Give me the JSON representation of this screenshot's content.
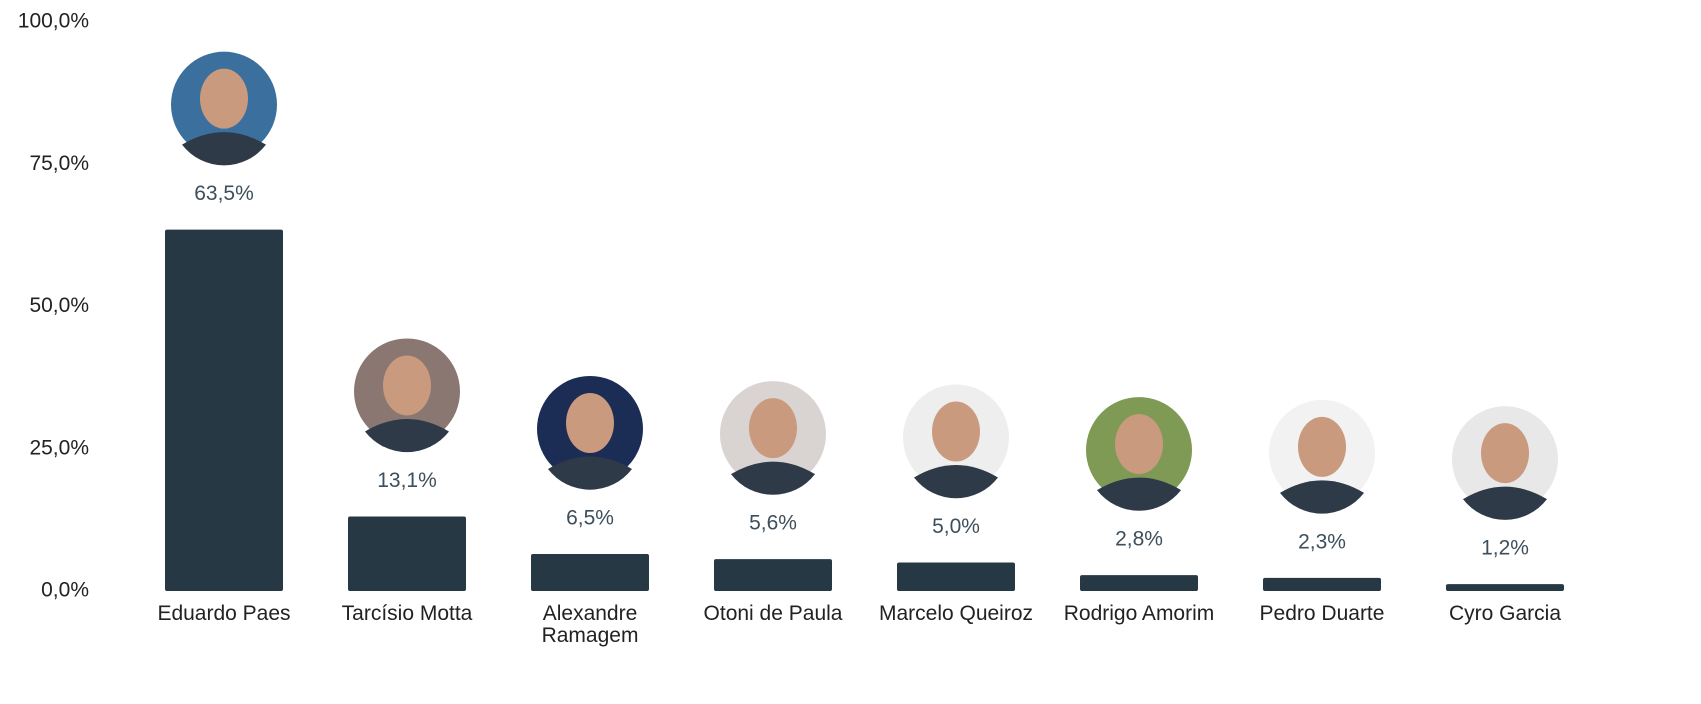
{
  "chart_data": {
    "type": "bar",
    "categories": [
      "Eduardo Paes",
      "Tarcísio Motta",
      "Alexandre Ramagem",
      "Otoni de Paula",
      "Marcelo Queiroz",
      "Rodrigo Amorim",
      "Pedro Duarte",
      "Cyro Garcia"
    ],
    "values": [
      63.5,
      13.1,
      6.5,
      5.6,
      5.0,
      2.8,
      2.3,
      1.2
    ],
    "value_labels": [
      "63,5%",
      "13,1%",
      "6,5%",
      "5,6%",
      "5,0%",
      "2,8%",
      "2,3%",
      "1,2%"
    ],
    "color": "#253843",
    "ylim": [
      0,
      100
    ],
    "yticks": [
      {
        "value": 0,
        "label": "0,0%"
      },
      {
        "value": 25,
        "label": "25,0%"
      },
      {
        "value": 50,
        "label": "50,0%"
      },
      {
        "value": 75,
        "label": "75,0%"
      },
      {
        "value": 100,
        "label": "100,0%"
      }
    ]
  }
}
